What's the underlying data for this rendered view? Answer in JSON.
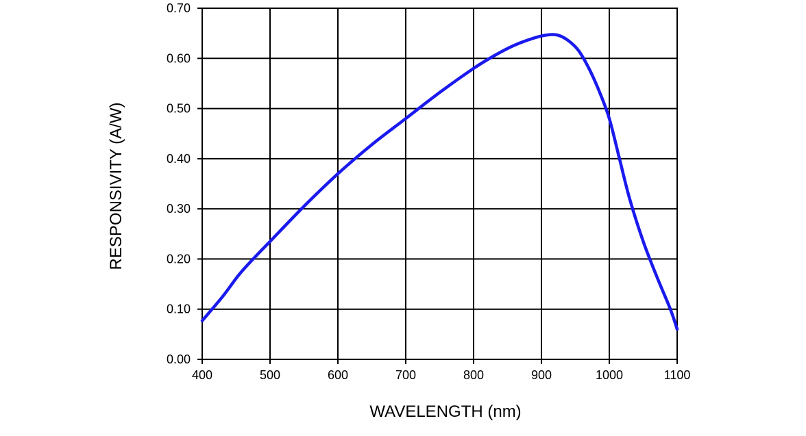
{
  "chart_data": {
    "type": "line",
    "title": "",
    "xlabel": "WAVELENGTH (nm)",
    "ylabel": "RESPONSIVITY (A/W)",
    "xlim": [
      400,
      1100
    ],
    "ylim": [
      0,
      0.7
    ],
    "grid": true,
    "x_ticks": [
      400,
      500,
      600,
      700,
      800,
      900,
      1000,
      1100
    ],
    "x_tick_labels": [
      "400",
      "500",
      "600",
      "700",
      "800",
      "900",
      "1000",
      "1100"
    ],
    "y_ticks": [
      0,
      0.1,
      0.2,
      0.3,
      0.4,
      0.5,
      0.6,
      0.7
    ],
    "y_tick_labels": [
      "0.00",
      "0.10",
      "0.20",
      "0.30",
      "0.40",
      "0.50",
      "0.60",
      "0.70"
    ],
    "series": [
      {
        "name": "Responsivity",
        "color": "#1a1aee",
        "x": [
          400,
          430,
          455,
          480,
          500,
          550,
          600,
          650,
          700,
          750,
          800,
          830,
          860,
          890,
          910,
          925,
          940,
          955,
          970,
          985,
          1000,
          1015,
          1030,
          1050,
          1070,
          1090,
          1100
        ],
        "y": [
          0.077,
          0.125,
          0.17,
          0.207,
          0.235,
          0.305,
          0.37,
          0.428,
          0.48,
          0.532,
          0.58,
          0.605,
          0.626,
          0.641,
          0.647,
          0.646,
          0.635,
          0.615,
          0.58,
          0.535,
          0.48,
          0.4,
          0.32,
          0.235,
          0.165,
          0.1,
          0.06
        ]
      }
    ]
  }
}
